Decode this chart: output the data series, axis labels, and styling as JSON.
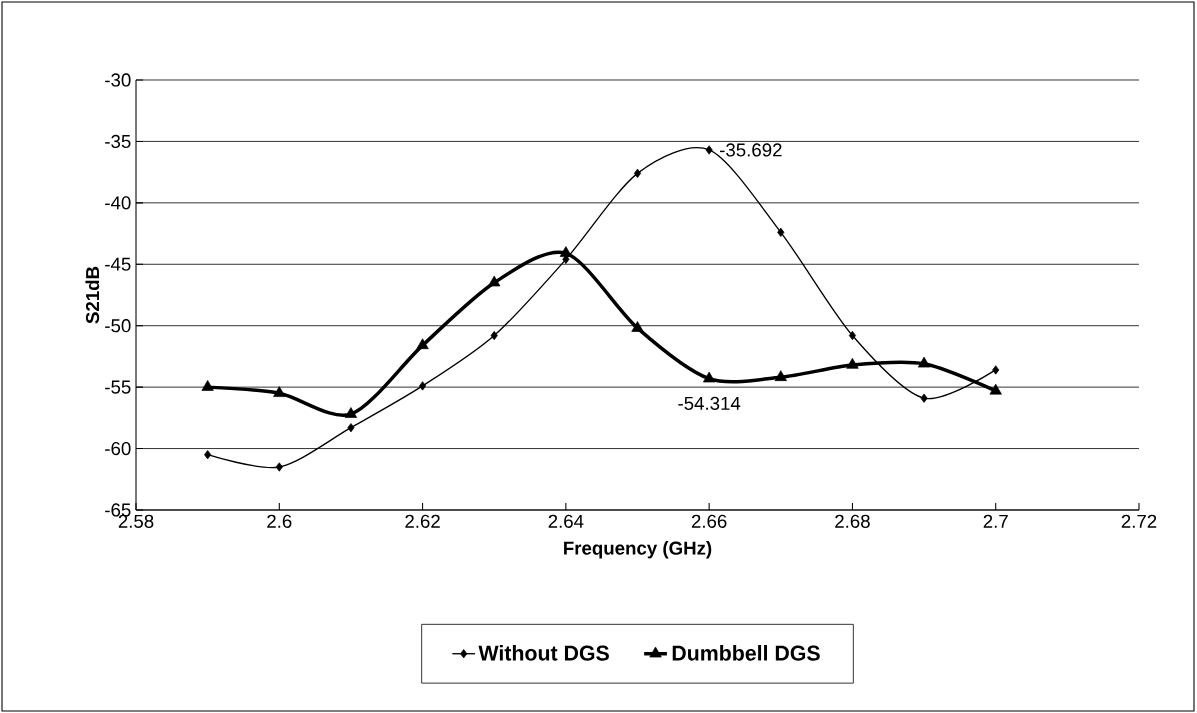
{
  "chart_data": {
    "type": "line",
    "xlabel": "Frequency (GHz)",
    "ylabel": "S21dB",
    "x": [
      2.59,
      2.6,
      2.61,
      2.62,
      2.63,
      2.64,
      2.65,
      2.66,
      2.67,
      2.68,
      2.69,
      2.7
    ],
    "series": [
      {
        "name": "Without DGS",
        "color": "#000000",
        "marker": "diamond",
        "values": [
          -60.5,
          -61.5,
          -58.3,
          -54.9,
          -50.8,
          -44.6,
          -37.6,
          -35.692,
          -42.4,
          -50.8,
          -55.9,
          -53.6
        ],
        "value_labels": [
          null,
          null,
          null,
          null,
          null,
          null,
          null,
          "-35.692",
          null,
          null,
          null,
          null
        ]
      },
      {
        "name": "Dumbbell DGS",
        "color": "#000000",
        "marker": "triangle",
        "values": [
          -55.0,
          -55.5,
          -57.2,
          -51.6,
          -46.5,
          -44.1,
          -50.2,
          -54.314,
          -54.2,
          -53.2,
          -53.1,
          -55.3
        ],
        "value_labels": [
          null,
          null,
          null,
          null,
          null,
          null,
          null,
          "-54.314",
          null,
          null,
          null,
          null
        ]
      }
    ],
    "xlim": [
      2.58,
      2.72
    ],
    "xticks": [
      2.58,
      2.6,
      2.62,
      2.64,
      2.66,
      2.68,
      2.7,
      2.72
    ],
    "ylim": [
      -65,
      -30
    ],
    "yticks": [
      -65,
      -60,
      -55,
      -50,
      -45,
      -40,
      -35,
      -30
    ],
    "grid": "y",
    "legend": "bottom",
    "line_style": "solid"
  }
}
